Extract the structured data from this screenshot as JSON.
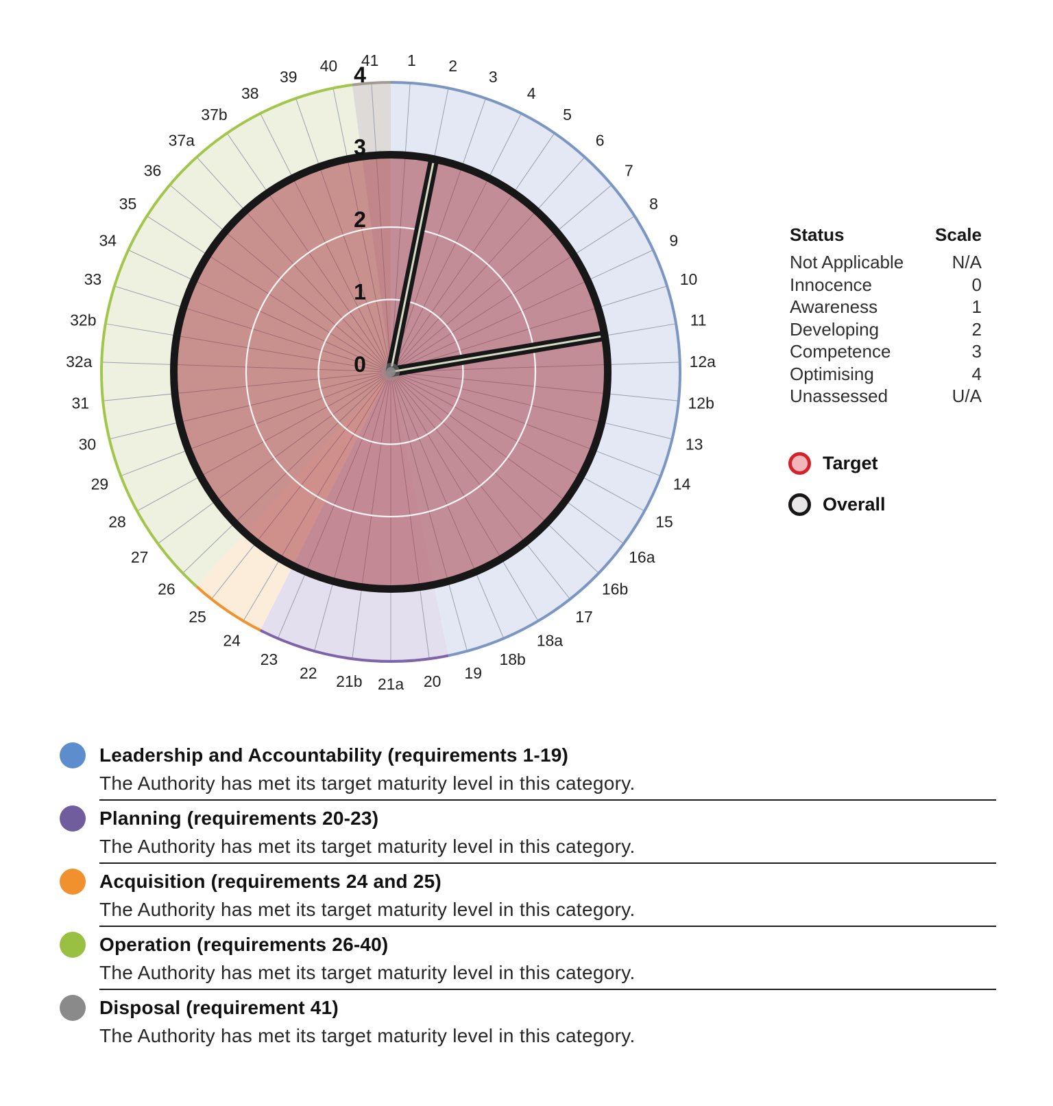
{
  "page": {
    "background": "#ffffff"
  },
  "chart_data": {
    "type": "radar",
    "title": "",
    "scale": {
      "min": 0,
      "max": 4,
      "ring_labels": [
        "0",
        "1",
        "2",
        "3",
        "4"
      ]
    },
    "spokes": [
      "1",
      "2",
      "3",
      "4",
      "5",
      "6",
      "7",
      "8",
      "9",
      "10",
      "11",
      "12a",
      "12b",
      "13",
      "14",
      "15",
      "16a",
      "16b",
      "17",
      "18a",
      "18b",
      "19",
      "20",
      "21a",
      "21b",
      "22",
      "23",
      "24",
      "25",
      "26",
      "27",
      "28",
      "29",
      "30",
      "31",
      "32a",
      "32b",
      "33",
      "34",
      "35",
      "36",
      "37a",
      "37b",
      "38",
      "39",
      "40",
      "41"
    ],
    "categories": [
      {
        "name": "Leadership and Accountability",
        "requirements": "1-19",
        "start_index": 0,
        "end_index": 21,
        "arc_color": "#7b97c1",
        "band_color": "#e3e8f4",
        "dot_color": "#5e8dce"
      },
      {
        "name": "Planning",
        "requirements": "20-23",
        "start_index": 22,
        "end_index": 26,
        "arc_color": "#7f63a9",
        "band_color": "#e4dfee",
        "dot_color": "#6f5d9e"
      },
      {
        "name": "Acquisition",
        "requirements": "24 and 25",
        "start_index": 27,
        "end_index": 28,
        "arc_color": "#f0922f",
        "band_color": "#fcedda",
        "dot_color": "#f0912d"
      },
      {
        "name": "Operation",
        "requirements": "26-40",
        "start_index": 29,
        "end_index": 45,
        "arc_color": "#a2c64c",
        "band_color": "#eff1e0",
        "dot_color": "#9ac043"
      },
      {
        "name": "Disposal",
        "requirements": "41",
        "start_index": 46,
        "end_index": 46,
        "arc_color": "#a19b94",
        "band_color": "#dedad7",
        "dot_color": "#8a8a8a"
      }
    ],
    "series": [
      {
        "name": "Target",
        "line_color": "#d3222a",
        "fill_color": "rgba(164,58,68,0.52)",
        "swatch_fill": "#f2b6ba",
        "values": [
          3,
          0,
          3,
          3,
          3,
          3,
          3,
          3,
          3,
          3,
          0,
          3,
          3,
          3,
          3,
          3,
          3,
          3,
          3,
          3,
          3,
          3,
          3,
          3,
          3,
          3,
          3,
          3,
          3,
          3,
          3,
          3,
          3,
          3,
          3,
          3,
          3,
          3,
          3,
          3,
          3,
          3,
          3,
          3,
          3,
          3,
          3
        ]
      },
      {
        "name": "Overall",
        "line_color": "#171717",
        "swatch_fill": "#e8e6e7",
        "values": [
          3,
          0,
          3,
          3,
          3,
          3,
          3,
          3,
          3,
          3,
          0,
          3,
          3,
          3,
          3,
          3,
          3,
          3,
          3,
          3,
          3,
          3,
          3,
          3,
          3,
          3,
          3,
          3,
          3,
          3,
          3,
          3,
          3,
          3,
          3,
          3,
          3,
          3,
          3,
          3,
          3,
          3,
          3,
          3,
          3,
          3,
          3
        ]
      }
    ],
    "not_applicable_spokes": [
      "2",
      "11"
    ],
    "notch_gap_color": "#d4dbc6",
    "grid": {
      "radial_line_color": "#9aa0aa",
      "inner_circle_color": "#ffffff"
    }
  },
  "status_legend": {
    "header_status": "Status",
    "header_scale": "Scale",
    "rows": [
      {
        "status": "Not Applicable",
        "scale": "N/A"
      },
      {
        "status": "Innocence",
        "scale": "0"
      },
      {
        "status": "Awareness",
        "scale": "1"
      },
      {
        "status": "Developing",
        "scale": "2"
      },
      {
        "status": "Competence",
        "scale": "3"
      },
      {
        "status": "Optimising",
        "scale": "4"
      },
      {
        "status": "Unassessed",
        "scale": "U/A"
      }
    ]
  },
  "category_list": [
    {
      "title": "Leadership and Accountability (requirements 1-19)",
      "description": "The Authority has met its target maturity level in this category.",
      "dot_color": "#5e8dce"
    },
    {
      "title": "Planning (requirements 20-23)",
      "description": "The Authority has met its target maturity level in this category.",
      "dot_color": "#6f5d9e"
    },
    {
      "title": "Acquisition (requirements 24 and 25)",
      "description": "The Authority has met its target maturity level in this category.",
      "dot_color": "#f0912d"
    },
    {
      "title": "Operation (requirements 26-40)",
      "description": "The Authority has met its target maturity level in this category.",
      "dot_color": "#9ac043"
    },
    {
      "title": "Disposal (requirement 41)",
      "description": "The Authority has met its target maturity level in this category.",
      "dot_color": "#8a8a8a"
    }
  ]
}
